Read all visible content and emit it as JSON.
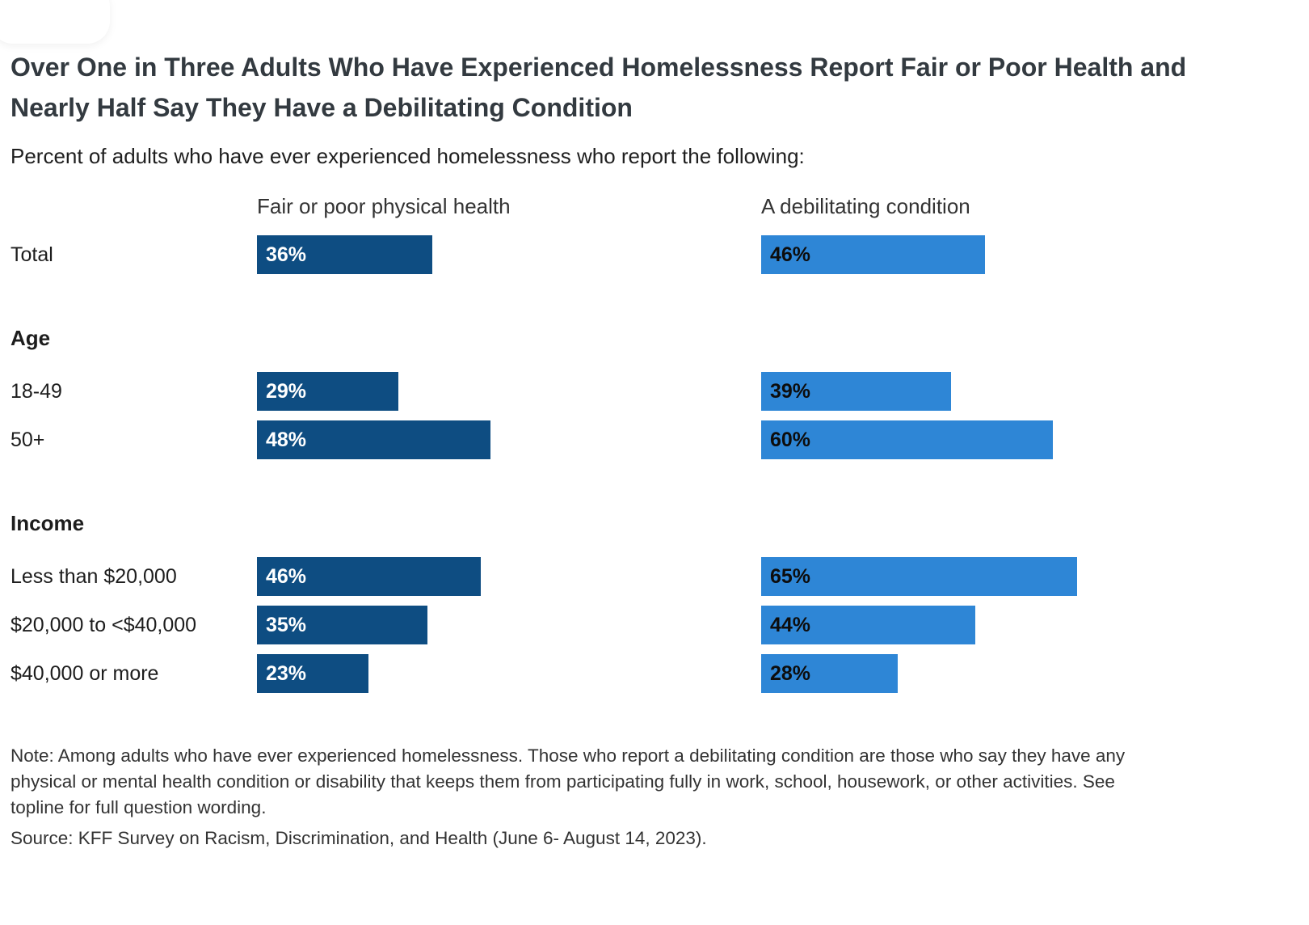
{
  "title": "Over One in Three Adults Who Have Experienced Homelessness Report Fair or Poor Health and Nearly Half Say They Have a Debilitating Condition",
  "subtitle": "Percent of adults who have ever experienced homelessness who report the following:",
  "chart_data": {
    "type": "bar",
    "orientation": "horizontal",
    "value_suffix": "%",
    "xlim": [
      0,
      100
    ],
    "columns": [
      {
        "name": "Fair or poor physical health",
        "color": "#0e4d82",
        "label_color": "#ffffff"
      },
      {
        "name": "A debilitating condition",
        "color": "#2e86d6",
        "label_color": "#0d0d0d"
      }
    ],
    "groups": [
      {
        "header": "",
        "rows": [
          {
            "label": "Total",
            "values": [
              36,
              46
            ]
          }
        ]
      },
      {
        "header": "Age",
        "rows": [
          {
            "label": "18-49",
            "values": [
              29,
              39
            ]
          },
          {
            "label": "50+",
            "values": [
              48,
              60
            ]
          }
        ]
      },
      {
        "header": "Income",
        "rows": [
          {
            "label": "Less than $20,000",
            "values": [
              46,
              65
            ]
          },
          {
            "label": "$20,000 to <$40,000",
            "values": [
              35,
              44
            ]
          },
          {
            "label": "$40,000 or more",
            "values": [
              23,
              28
            ]
          }
        ]
      }
    ]
  },
  "note": "Note: Among adults who have ever experienced homelessness. Those who report a debilitating condition are those who say they have any physical or mental health condition or disability that keeps them from participating fully in work, school, housework, or other activities. See topline for full question wording.",
  "source": "Source: KFF Survey on Racism, Discrimination, and Health (June 6- August 14, 2023)."
}
